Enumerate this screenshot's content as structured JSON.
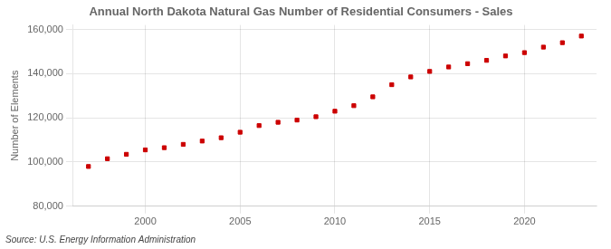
{
  "chart_data": {
    "type": "scatter",
    "title": "Annual North Dakota Natural Gas Number of Residential Consumers - Sales",
    "ylabel": "Number of Elements",
    "annotations": [
      "Source: U.S. Energy Information Administration"
    ],
    "x": [
      1997,
      1998,
      1999,
      2000,
      2001,
      2002,
      2003,
      2004,
      2005,
      2006,
      2007,
      2008,
      2009,
      2010,
      2011,
      2012,
      2013,
      2014,
      2015,
      2016,
      2017,
      2018,
      2019,
      2020,
      2021,
      2022,
      2023
    ],
    "values": [
      98000,
      101500,
      103500,
      105500,
      106500,
      108000,
      109500,
      111000,
      113500,
      116500,
      118000,
      119000,
      120500,
      123000,
      125500,
      129500,
      135000,
      138500,
      141000,
      143000,
      144500,
      146000,
      148000,
      149500,
      152000,
      154000,
      157000
    ],
    "color": "#cc0000",
    "marker": "square",
    "xlim": [
      1996.2,
      2023.8
    ],
    "xticks": [
      2000,
      2005,
      2010,
      2015,
      2020
    ],
    "ylim": [
      80000,
      162000
    ],
    "yticks": [
      {
        "value": 80000,
        "label": "80,000"
      },
      {
        "value": 100000,
        "label": "100,000"
      },
      {
        "value": 120000,
        "label": "120,000"
      },
      {
        "value": 140000,
        "label": "140,000"
      },
      {
        "value": 160000,
        "label": "160,000"
      }
    ],
    "grid": true
  }
}
